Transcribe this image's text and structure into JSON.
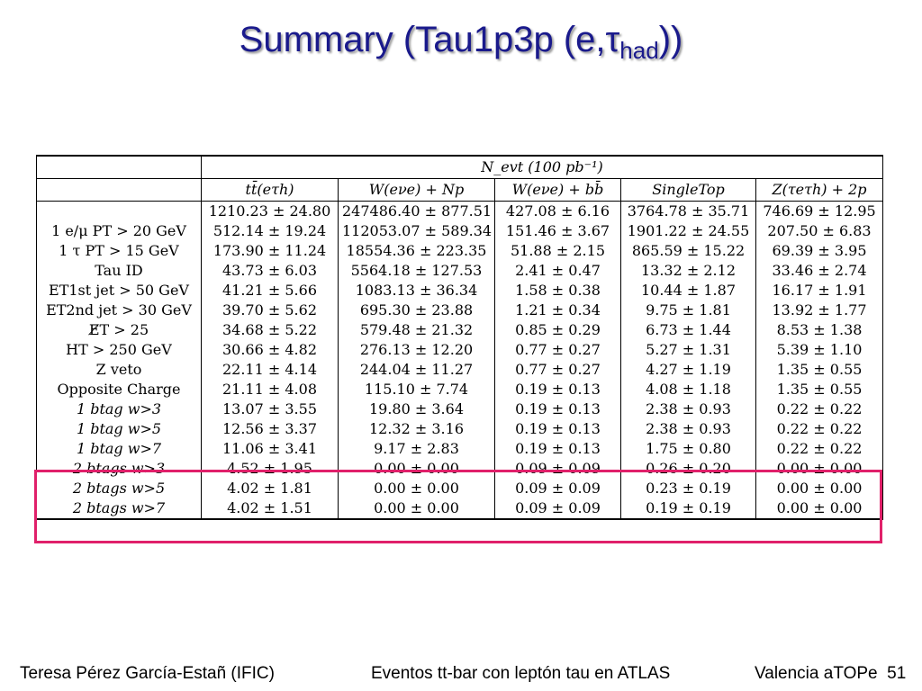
{
  "title": {
    "main": "Summary (Tau1p3p (e,τ",
    "sub": "had",
    "close": "))"
  },
  "table": {
    "group_header": "N_evt (100 pb⁻¹)",
    "columns": [
      "tt̄(eτh)",
      "W(eνe) + Np",
      "W(eνe) + bb̄",
      "SingleTop",
      "Z(τeτh) + 2p"
    ],
    "rows": [
      {
        "label": "",
        "values": [
          "1210.23 ± 24.80",
          "247486.40 ± 877.51",
          "427.08 ± 6.16",
          "3764.78 ± 35.71",
          "746.69 ± 12.95"
        ]
      },
      {
        "label": "1 e/μ PT > 20 GeV",
        "values": [
          "512.14 ± 19.24",
          "112053.07 ± 589.34",
          "151.46 ± 3.67",
          "1901.22 ± 24.55",
          "207.50 ± 6.83"
        ]
      },
      {
        "label": "1 τ PT > 15 GeV",
        "values": [
          "173.90 ± 11.24",
          "18554.36 ± 223.35",
          "51.88 ± 2.15",
          "865.59 ± 15.22",
          "69.39 ± 3.95"
        ]
      },
      {
        "label": "Tau ID",
        "values": [
          "43.73 ± 6.03",
          "5564.18 ± 127.53",
          "2.41 ± 0.47",
          "13.32 ± 2.12",
          "33.46 ± 2.74"
        ]
      },
      {
        "label": "ET1st jet > 50 GeV",
        "values": [
          "41.21 ± 5.66",
          "1083.13 ± 36.34",
          "1.58 ± 0.38",
          "10.44 ± 1.87",
          "16.17 ± 1.91"
        ]
      },
      {
        "label": "ET2nd jet > 30 GeV",
        "values": [
          "39.70 ± 5.62",
          "695.30 ± 23.88",
          "1.21 ± 0.34",
          "9.75 ± 1.81",
          "13.92 ± 1.77"
        ]
      },
      {
        "label": "E̸T > 25",
        "values": [
          "34.68 ± 5.22",
          "579.48 ± 21.32",
          "0.85 ± 0.29",
          "6.73 ± 1.44",
          "8.53 ± 1.38"
        ]
      },
      {
        "label": "HT > 250 GeV",
        "values": [
          "30.66 ± 4.82",
          "276.13 ± 12.20",
          "0.77 ± 0.27",
          "5.27 ± 1.31",
          "5.39 ± 1.10"
        ]
      },
      {
        "label": "Z veto",
        "values": [
          "22.11 ± 4.14",
          "244.04 ± 11.27",
          "0.77 ± 0.27",
          "4.27 ± 1.19",
          "1.35 ± 0.55"
        ]
      },
      {
        "label": "Opposite Charge",
        "values": [
          "21.11 ± 4.08",
          "115.10 ± 7.74",
          "0.19 ± 0.13",
          "4.08 ± 1.18",
          "1.35 ± 0.55"
        ]
      },
      {
        "label": "1 btag w>3",
        "values": [
          "13.07 ± 3.55",
          "19.80 ± 3.64",
          "0.19 ± 0.13",
          "2.38 ± 0.93",
          "0.22 ± 0.22"
        ]
      },
      {
        "label": "1 btag w>5",
        "values": [
          "12.56 ± 3.37",
          "12.32 ± 3.16",
          "0.19 ± 0.13",
          "2.38 ± 0.93",
          "0.22 ± 0.22"
        ]
      },
      {
        "label": "1 btag w>7",
        "values": [
          "11.06 ± 3.41",
          "9.17 ± 2.83",
          "0.19 ± 0.13",
          "1.75 ± 0.80",
          "0.22 ± 0.22"
        ]
      },
      {
        "label": "2 btags w>3",
        "values": [
          "4.52 ± 1.95",
          "0.00 ± 0.00",
          "0.09 ± 0.09",
          "0.26 ± 0.20",
          "0.00 ± 0.00"
        ]
      },
      {
        "label": "2 btags w>5",
        "values": [
          "4.02 ± 1.81",
          "0.00 ± 0.00",
          "0.09 ± 0.09",
          "0.23 ± 0.19",
          "0.00 ± 0.00"
        ]
      },
      {
        "label": "2 btags w>7",
        "values": [
          "4.02 ± 1.51",
          "0.00 ± 0.00",
          "0.09 ± 0.09",
          "0.19 ± 0.19",
          "0.00 ± 0.00"
        ]
      }
    ]
  },
  "highlight_color": "#e0206a",
  "footer": {
    "author": "Teresa Pérez García-Estañ (IFIC)",
    "talk": "Eventos tt-bar con leptón tau en ATLAS",
    "venue": "Valencia aTOPe",
    "page": "51"
  }
}
